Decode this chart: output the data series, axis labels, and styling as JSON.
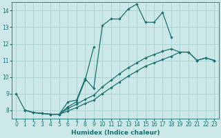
{
  "xlabel": "Humidex (Indice chaleur)",
  "xlim": [
    -0.5,
    23.5
  ],
  "ylim": [
    7.5,
    14.5
  ],
  "yticks": [
    8,
    9,
    10,
    11,
    12,
    13,
    14
  ],
  "xticks": [
    0,
    1,
    2,
    3,
    4,
    5,
    6,
    7,
    8,
    9,
    10,
    11,
    12,
    13,
    14,
    15,
    16,
    17,
    18,
    19,
    20,
    21,
    22,
    23
  ],
  "bg_color": "#cde8e8",
  "grid_color": "#aacfcf",
  "line_color": "#1a7070",
  "line0_x": [
    0,
    1,
    2,
    3,
    4,
    5,
    6,
    7,
    8,
    9,
    10,
    11,
    12,
    13,
    14,
    15,
    16,
    17,
    18
  ],
  "line0_y": [
    9.0,
    8.0,
    7.85,
    7.8,
    7.75,
    7.75,
    8.5,
    8.6,
    9.9,
    9.3,
    13.1,
    13.5,
    13.5,
    14.1,
    14.4,
    13.3,
    13.3,
    13.9,
    12.4
  ],
  "line1_x": [
    5,
    6,
    7,
    8,
    9
  ],
  "line1_y": [
    7.75,
    8.2,
    8.5,
    9.8,
    11.8
  ],
  "line2_x": [
    1,
    2,
    3,
    4,
    5,
    6,
    7,
    8,
    9,
    10,
    11,
    12,
    13,
    14,
    15,
    16,
    17,
    18,
    19,
    20,
    21,
    22,
    23
  ],
  "line2_y": [
    8.0,
    7.85,
    7.8,
    7.75,
    7.75,
    8.1,
    8.35,
    8.65,
    8.9,
    9.4,
    9.8,
    10.2,
    10.55,
    10.85,
    11.15,
    11.35,
    11.55,
    11.7,
    11.5,
    11.5,
    11.0,
    11.15,
    11.0
  ],
  "line3_x": [
    1,
    2,
    3,
    4,
    5,
    6,
    7,
    8,
    9,
    10,
    11,
    12,
    13,
    14,
    15,
    16,
    17,
    18,
    19,
    20,
    21,
    22,
    23
  ],
  "line3_y": [
    8.0,
    7.85,
    7.8,
    7.75,
    7.75,
    7.95,
    8.15,
    8.4,
    8.6,
    9.0,
    9.35,
    9.7,
    10.05,
    10.35,
    10.65,
    10.85,
    11.05,
    11.25,
    11.5,
    11.5,
    11.0,
    11.15,
    11.0
  ]
}
